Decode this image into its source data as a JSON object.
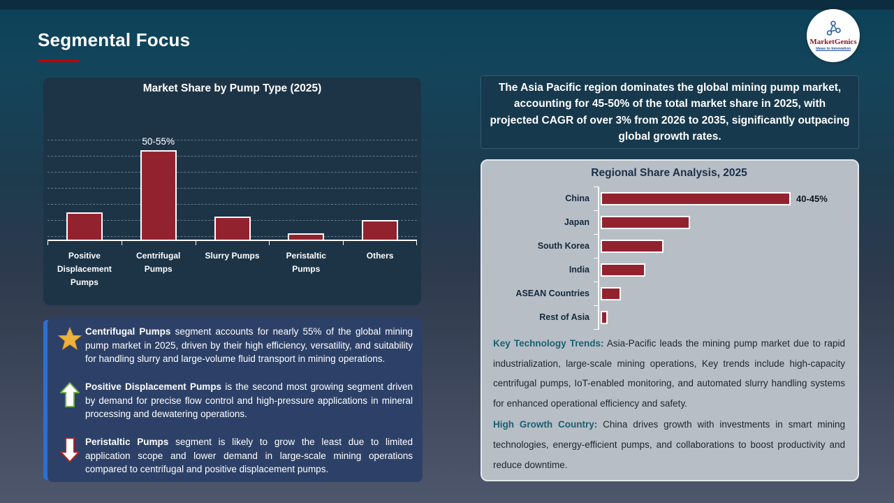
{
  "slide": {
    "title": "Segmental Focus"
  },
  "logo": {
    "brand": "MarketGenics",
    "tagline": "Ideas to Innovation"
  },
  "chart_data": [
    {
      "id": "pump_type",
      "type": "bar",
      "title": "Market Share by Pump Type (2025)",
      "categories": [
        "Positive Displacement Pumps",
        "Centrifugal Pumps",
        "Slurry Pumps",
        "Peristaltic Pumps",
        "Others"
      ],
      "values": [
        16,
        52.5,
        13.5,
        3.5,
        11.5
      ],
      "data_labels": [
        "",
        "50-55%",
        "",
        "",
        ""
      ],
      "unit": "%",
      "ylim": [
        0,
        60
      ],
      "grid": "horizontal dashed gridlines, no y tick labels",
      "legend": "none",
      "note": "only Centrifugal Pumps carries the printed label 50-55%; other values estimated from bar heights"
    },
    {
      "id": "regional_share",
      "type": "bar-horizontal",
      "title": "Regional Share Analysis, 2025",
      "categories": [
        "China",
        "Japan",
        "South Korea",
        "India",
        "ASEAN Countries",
        "Rest of Asia"
      ],
      "values": [
        42.5,
        20,
        14,
        10,
        4.5,
        1.5
      ],
      "data_labels": [
        "40-45%",
        "",
        "",
        "",
        "",
        ""
      ],
      "unit": "%",
      "xlim": [
        0,
        45
      ],
      "grid": "none, white category axis with ticks",
      "legend": "none",
      "note": "only China carries the printed label 40-45%; other values estimated from bar lengths"
    }
  ],
  "callout": {
    "items": [
      {
        "icon": "star-icon",
        "lead": "Centrifugal Pumps",
        "text": "segment accounts for nearly 55% of the global mining pump market in 2025, driven by their high efficiency, versatility, and suitability for handling slurry and large-volume fluid transport in mining operations."
      },
      {
        "icon": "arrow-up-icon",
        "lead": "Positive Displacement Pumps",
        "text": "is the second most growing segment driven by demand for precise flow control and high-pressure applications in mineral processing and dewatering operations."
      },
      {
        "icon": "arrow-down-icon",
        "lead": "Peristaltic Pumps",
        "text": "segment is likely to grow the least due to limited application scope and lower demand in large-scale mining operations compared to centrifugal and positive displacement pumps."
      }
    ]
  },
  "highlight": {
    "text": "The Asia Pacific region dominates the global mining pump market, accounting for 45-50% of the total market share in 2025, with projected CAGR of over 3% from 2026 to 2035, significantly outpacing global growth rates."
  },
  "regional_panel": {
    "title": "Regional Share Analysis, 2025",
    "paragraphs": [
      {
        "label": "Key Technology Trends:",
        "text": "Asia-Pacific leads the mining pump market due to rapid industrialization, large-scale mining operations, Key trends include high-capacity centrifugal pumps, IoT-enabled monitoring, and automated slurry handling systems for enhanced operational efficiency and safety."
      },
      {
        "label": "High Growth Country:",
        "text": "China drives growth with investments in smart mining technologies, energy-efficient pumps, and collaborations to boost productivity and reduce downtime."
      }
    ]
  },
  "colors": {
    "bar_fill": "#93222f",
    "bar_border": "#ffffff",
    "title_underline": "#c00000",
    "callout_bg": "#2d4168",
    "callout_accent": "#2e6fd0",
    "quote_bg": "#17394d",
    "panel_bg": "#b7bec6",
    "teal_lead": "#1c6070",
    "star_gold": "#ecb23d",
    "arrow_up_green": "#70ad47",
    "arrow_down_red": "#b42025"
  }
}
